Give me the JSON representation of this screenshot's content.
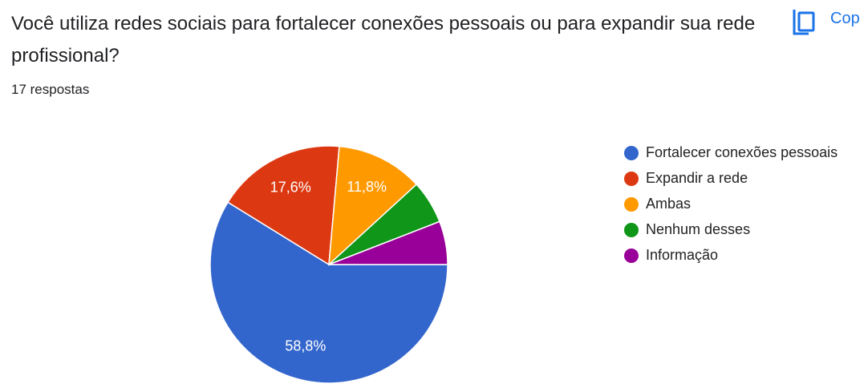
{
  "chart_data": {
    "type": "pie",
    "title": "Você utiliza redes sociais para fortalecer conexões pessoais ou para expandir sua rede profissional?",
    "subtitle": "17 respostas",
    "button": "Cop",
    "categories": [
      "Fortalecer conexões pessoais",
      "Expandir a rede",
      "Ambas",
      "Nenhum desses",
      "Informação"
    ],
    "values": [
      58.8,
      17.6,
      11.8,
      5.9,
      5.9
    ],
    "value_labels": [
      "58,8%",
      "17,6%",
      "11,8%",
      null,
      null
    ],
    "colors": [
      "#3366cc",
      "#dc3912",
      "#ff9900",
      "#109618",
      "#990099"
    ],
    "legend": "right"
  }
}
